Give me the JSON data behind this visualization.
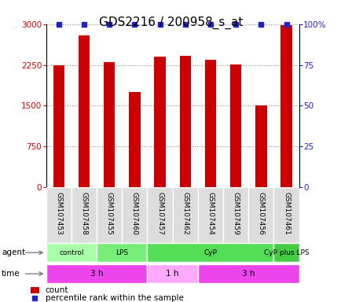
{
  "title": "GDS2216 / 200958_s_at",
  "samples": [
    "GSM107453",
    "GSM107458",
    "GSM107455",
    "GSM107460",
    "GSM107457",
    "GSM107462",
    "GSM107454",
    "GSM107459",
    "GSM107456",
    "GSM107461"
  ],
  "counts": [
    2250,
    2800,
    2300,
    1750,
    2400,
    2420,
    2350,
    2260,
    1500,
    2980
  ],
  "percentile_ranks": [
    100,
    100,
    100,
    100,
    100,
    100,
    100,
    100,
    100,
    100
  ],
  "ylim_left": [
    0,
    3000
  ],
  "ylim_right": [
    0,
    100
  ],
  "yticks_left": [
    0,
    750,
    1500,
    2250,
    3000
  ],
  "yticks_right": [
    0,
    25,
    50,
    75,
    100
  ],
  "ytick_labels_left": [
    "0",
    "750",
    "1500",
    "2250",
    "3000"
  ],
  "ytick_labels_right": [
    "0",
    "25",
    "50",
    "75",
    "100%"
  ],
  "bar_color": "#cc0000",
  "dot_color": "#2222cc",
  "agent_groups": [
    {
      "label": "control",
      "start": 0,
      "end": 2,
      "color": "#aaffaa"
    },
    {
      "label": "LPS",
      "start": 2,
      "end": 4,
      "color": "#77ee77"
    },
    {
      "label": "CyP",
      "start": 4,
      "end": 9,
      "color": "#55dd55"
    },
    {
      "label": "CyP plus LPS",
      "start": 9,
      "end": 10,
      "color": "#44cc44"
    }
  ],
  "time_groups": [
    {
      "label": "3 h",
      "start": 0,
      "end": 4,
      "color": "#ee44ee"
    },
    {
      "label": "1 h",
      "start": 4,
      "end": 6,
      "color": "#ffaaff"
    },
    {
      "label": "3 h",
      "start": 6,
      "end": 10,
      "color": "#ee44ee"
    }
  ],
  "legend_count_color": "#cc0000",
  "legend_pct_color": "#2222cc",
  "background_color": "#ffffff",
  "grid_color": "#888888",
  "title_fontsize": 11,
  "tick_fontsize": 7.5,
  "label_fontsize": 6.5,
  "row_fontsize": 7.5
}
